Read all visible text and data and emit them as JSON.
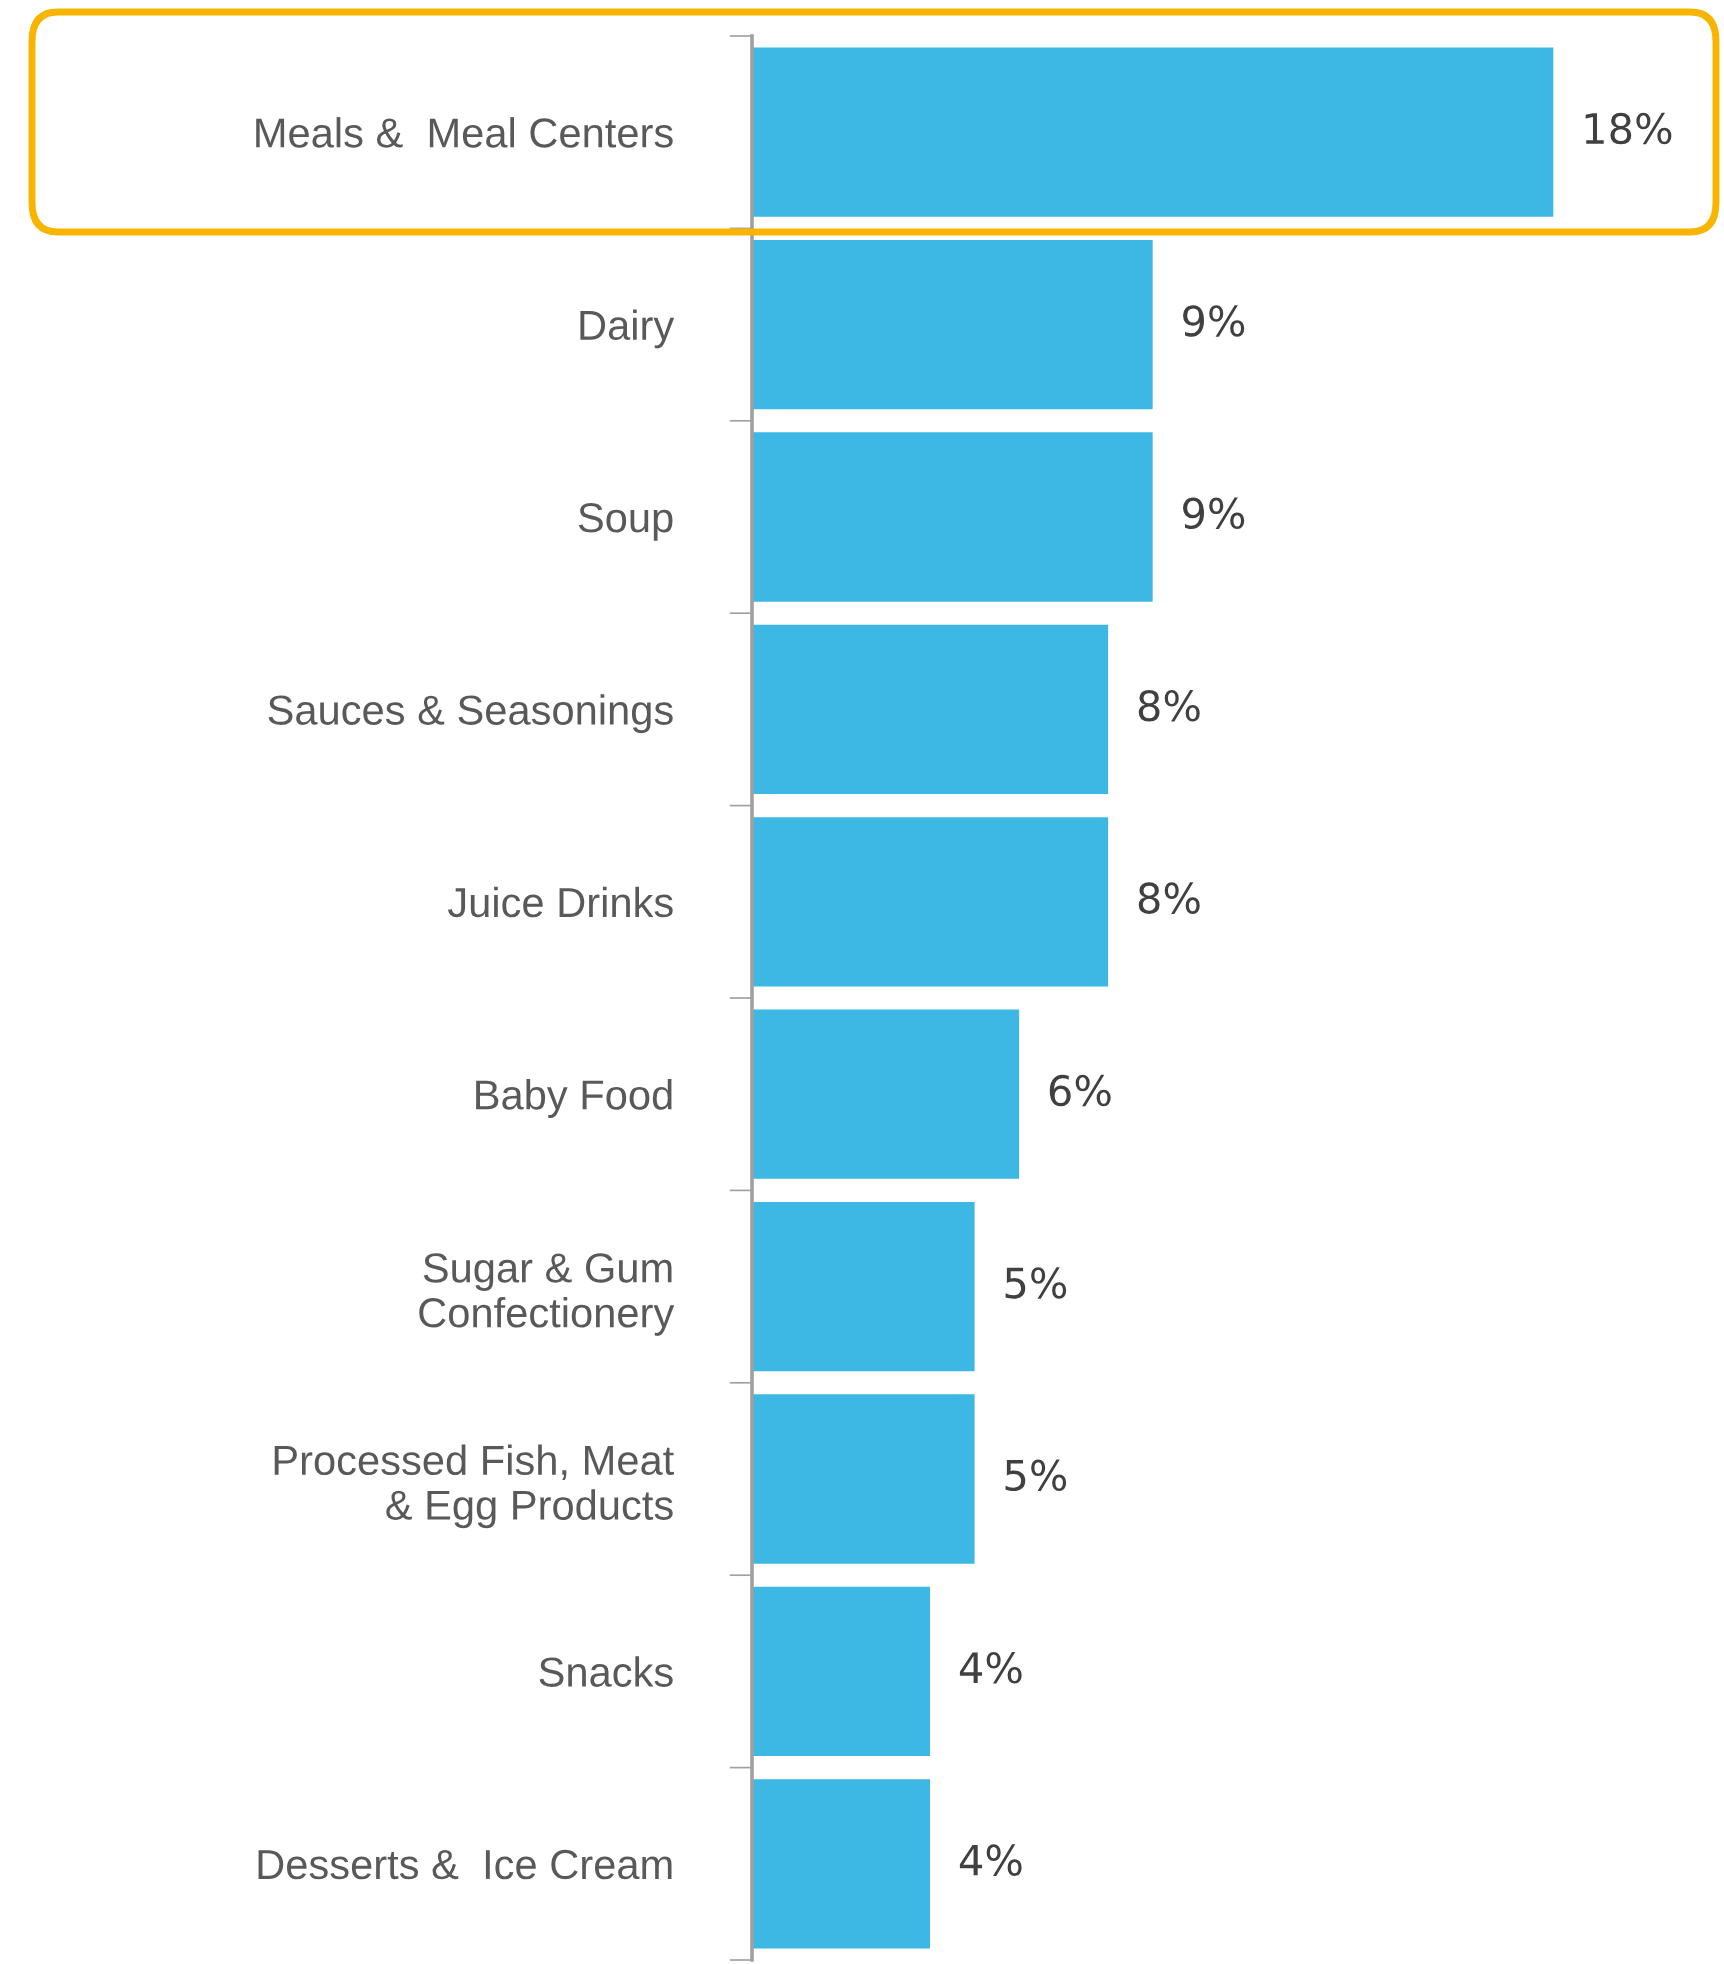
{
  "chart_data": {
    "type": "bar",
    "orientation": "horizontal",
    "categories": [
      "Meals &  Meal Centers",
      "Dairy",
      "Soup",
      "Sauces & Seasonings",
      "Juice Drinks",
      "Baby Food",
      "Sugar & Gum\nConfectionery",
      "Processed Fish, Meat\n& Egg Products",
      "Snacks",
      "Desserts &  Ice Cream"
    ],
    "values": [
      18,
      9,
      9,
      8,
      8,
      6,
      5,
      5,
      4,
      4
    ],
    "value_labels": [
      "18%",
      "9%",
      "9%",
      "8%",
      "8%",
      "6%",
      "5%",
      "5%",
      "4%",
      "4%"
    ],
    "color": "#3db7e4",
    "grid": false,
    "legend": false
  }
}
